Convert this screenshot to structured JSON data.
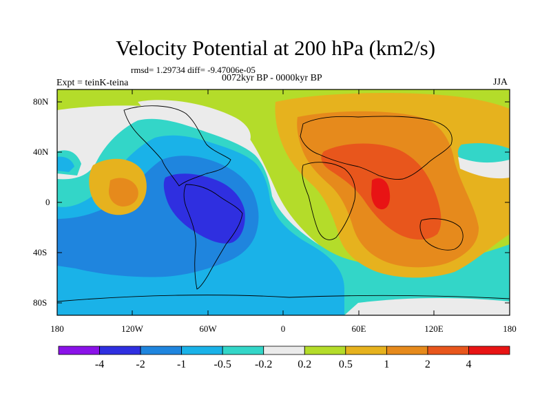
{
  "title": "Velocity Potential at 200 hPa (km2/s)",
  "stats": "rmsd= 1.29734 diff= -9.47006e-05",
  "period": "0072kyr BP - 0000kyr BP",
  "experiment": "Expt = teinK-teina",
  "season": "JJA",
  "lat_labels": [
    "80N",
    "40N",
    "0",
    "40S",
    "80S"
  ],
  "lon_labels": [
    "180",
    "120W",
    "60W",
    "0",
    "60E",
    "120E",
    "180"
  ],
  "colorbar": {
    "labels": [
      "-4",
      "-2",
      "-1",
      "-0.5",
      "-0.2",
      "0.2",
      "0.5",
      "1",
      "2",
      "4"
    ],
    "colors": [
      "#8a12e8",
      "#2f2fe0",
      "#1f85de",
      "#1ab2e8",
      "#33d6c8",
      "#ebebeb",
      "#b4dc2a",
      "#e6b21e",
      "#e68a1c",
      "#e8561c",
      "#e81414"
    ]
  }
}
